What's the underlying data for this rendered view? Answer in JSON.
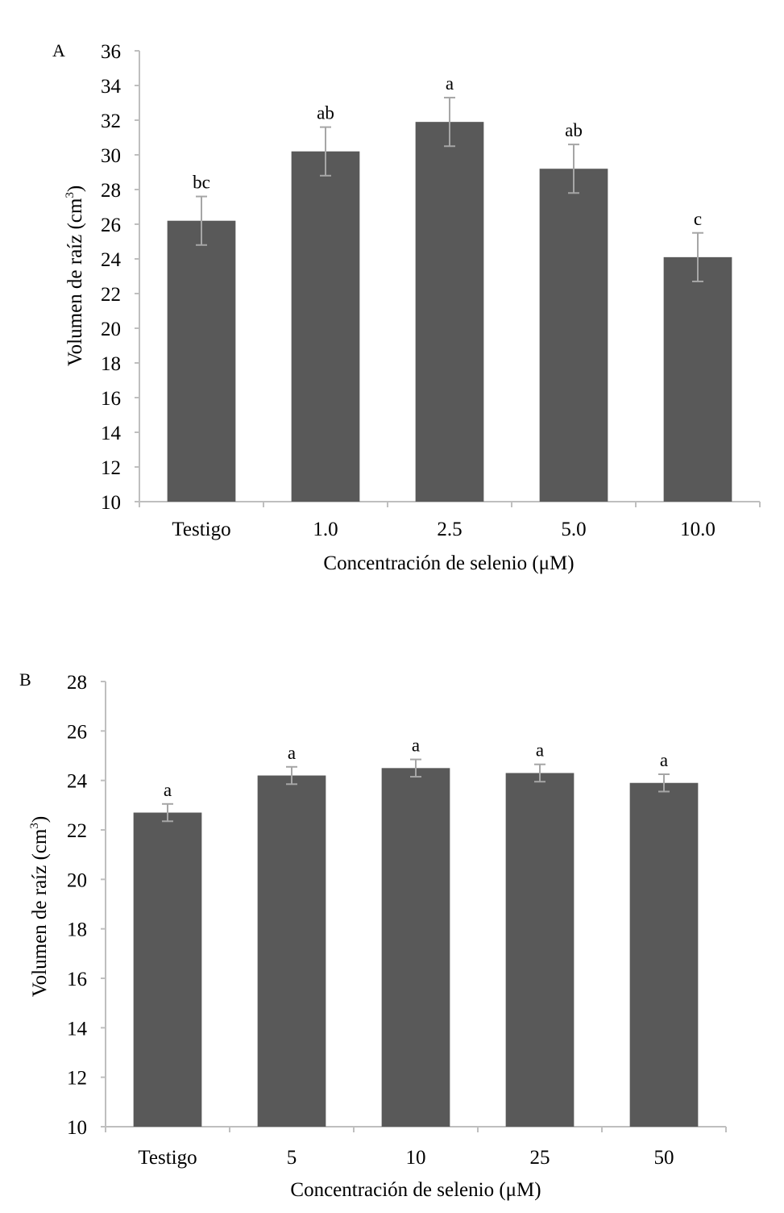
{
  "chart_data": [
    {
      "type": "bar",
      "panel_label": "A",
      "xlabel": "Concentración de selenio (μM)",
      "ylabel_main": "Volumen de raíz (cm",
      "ylabel_sup": "3",
      "ylabel_end": ")",
      "ylim": [
        10,
        36
      ],
      "ytick_step": 2,
      "categories": [
        "Testigo",
        "1.0",
        "2.5",
        "5.0",
        "10.0"
      ],
      "values": [
        26.2,
        30.2,
        31.9,
        29.2,
        24.1
      ],
      "errors": [
        1.4,
        1.4,
        1.4,
        1.4,
        1.4
      ],
      "significance": [
        "bc",
        "ab",
        "a",
        "ab",
        "c"
      ],
      "bar_color": "#595959",
      "error_color": "#a6a6a6",
      "axis_color": "#bfbfbf"
    },
    {
      "type": "bar",
      "panel_label": "B",
      "xlabel": "Concentración de selenio (μM)",
      "ylabel_main": "Volumen de raíz (cm",
      "ylabel_sup": "3",
      "ylabel_end": ")",
      "ylim": [
        10,
        28
      ],
      "ytick_step": 2,
      "categories": [
        "Testigo",
        "5",
        "10",
        "25",
        "50"
      ],
      "values": [
        22.7,
        24.2,
        24.5,
        24.3,
        23.9
      ],
      "errors": [
        0.35,
        0.35,
        0.35,
        0.35,
        0.35
      ],
      "significance": [
        "a",
        "a",
        "a",
        "a",
        "a"
      ],
      "bar_color": "#595959",
      "error_color": "#a6a6a6",
      "axis_color": "#bfbfbf"
    }
  ]
}
